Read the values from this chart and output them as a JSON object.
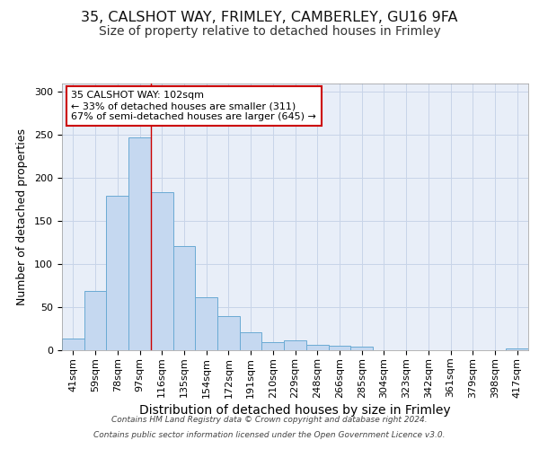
{
  "title1": "35, CALSHOT WAY, FRIMLEY, CAMBERLEY, GU16 9FA",
  "title2": "Size of property relative to detached houses in Frimley",
  "xlabel": "Distribution of detached houses by size in Frimley",
  "ylabel": "Number of detached properties",
  "categories": [
    "41sqm",
    "59sqm",
    "78sqm",
    "97sqm",
    "116sqm",
    "135sqm",
    "154sqm",
    "172sqm",
    "191sqm",
    "210sqm",
    "229sqm",
    "248sqm",
    "266sqm",
    "285sqm",
    "304sqm",
    "323sqm",
    "342sqm",
    "361sqm",
    "379sqm",
    "398sqm",
    "417sqm"
  ],
  "values": [
    14,
    69,
    179,
    247,
    183,
    121,
    62,
    40,
    21,
    9,
    11,
    6,
    5,
    4,
    0,
    0,
    0,
    0,
    0,
    0,
    2
  ],
  "bar_color": "#c5d8f0",
  "bar_edgecolor": "#6aaad4",
  "bar_linewidth": 0.7,
  "redline_x": 3.5,
  "annotation_text": "35 CALSHOT WAY: 102sqm\n← 33% of detached houses are smaller (311)\n67% of semi-detached houses are larger (645) →",
  "annotation_box_facecolor": "#ffffff",
  "annotation_box_edgecolor": "#cc0000",
  "ylim": [
    0,
    310
  ],
  "yticks": [
    0,
    50,
    100,
    150,
    200,
    250,
    300
  ],
  "grid_color": "#c8d4e8",
  "background_color": "#e8eef8",
  "footer_line1": "Contains HM Land Registry data © Crown copyright and database right 2024.",
  "footer_line2": "Contains public sector information licensed under the Open Government Licence v3.0.",
  "title1_fontsize": 11.5,
  "title2_fontsize": 10,
  "xlabel_fontsize": 10,
  "ylabel_fontsize": 9,
  "tick_fontsize": 8,
  "annot_fontsize": 8
}
